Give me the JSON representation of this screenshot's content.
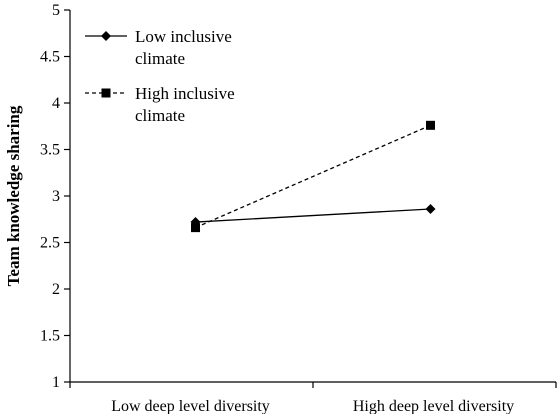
{
  "chart_data": {
    "type": "line",
    "title": "",
    "xlabel": "",
    "ylabel": "Team knowledge sharing",
    "categories": [
      "Low deep level diversity",
      "High deep level diversity"
    ],
    "ylim": [
      1,
      5
    ],
    "yticks": [
      "1",
      "1.5",
      "2",
      "2.5",
      "3",
      "3.5",
      "4",
      "4.5",
      "5"
    ],
    "grid": false,
    "legend_position": "top-left",
    "series": [
      {
        "name_lines": [
          "Low inclusive",
          "climate"
        ],
        "values": [
          2.72,
          2.86
        ],
        "marker": "diamond",
        "line_style": "solid",
        "color": "#000000"
      },
      {
        "name_lines": [
          "High inclusive",
          "climate"
        ],
        "values": [
          2.66,
          3.76
        ],
        "marker": "square",
        "line_style": "dashed",
        "color": "#000000"
      }
    ]
  }
}
